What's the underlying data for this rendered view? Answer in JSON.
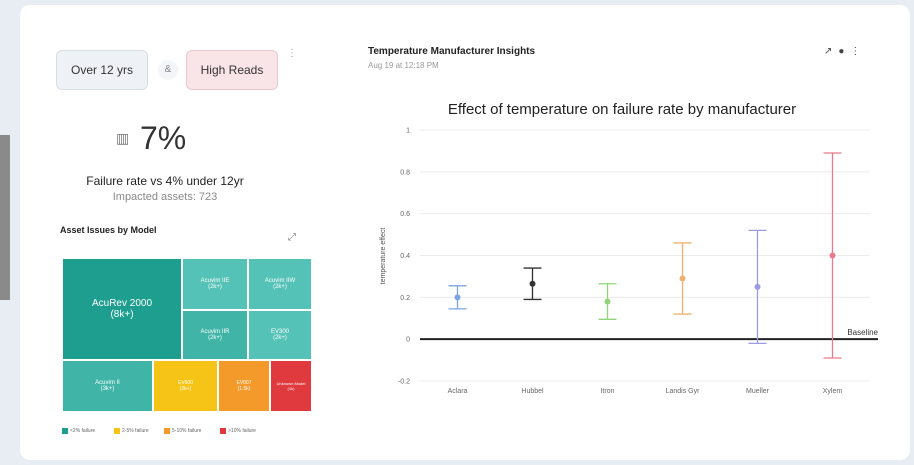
{
  "filters": {
    "left": "Over 12 yrs",
    "join": "&",
    "right": "High Reads"
  },
  "kpi": {
    "value": "7%",
    "caption": "Failure rate vs 4% under 12yr",
    "sub": "Impacted assets: 723"
  },
  "treemap": {
    "title": "Asset Issues by Model",
    "tiles": [
      {
        "name": "AcuRev 2000",
        "label": "(8k+)"
      },
      {
        "name": "Acuvim IIE",
        "label": "(2k+)"
      },
      {
        "name": "Acuvim IIW",
        "label": "(2k+)"
      },
      {
        "name": "Acuvim IIR",
        "label": "(2k+)"
      },
      {
        "name": "EV300",
        "label": "(2k+)"
      },
      {
        "name": "Acuvim II",
        "label": "(3k+)"
      },
      {
        "name": "EV600",
        "label": "(2k+)"
      },
      {
        "name": "EV007",
        "label": "(1.5k)"
      },
      {
        "name": "Unknown Model",
        "label": "(1k)"
      }
    ],
    "legend": [
      "<2% failure",
      "2-5% failure",
      "5-10% failure",
      ">10% failure"
    ]
  },
  "panel": {
    "title": "Temperature Manufacturer Insights",
    "timestamp": "Aug 19 at 12:18 PM"
  },
  "chart_data": {
    "type": "errorbar",
    "title": "Effect of temperature on failure rate by manufacturer",
    "y_label": "temperature effect",
    "categories": [
      "Aclara",
      "Hubbel",
      "Itron",
      "Landis Gyr",
      "Mueller",
      "Xylem"
    ],
    "values": [
      0.2,
      0.265,
      0.18,
      0.29,
      0.25,
      0.4
    ],
    "errors": [
      0.055,
      0.075,
      0.085,
      0.17,
      0.27,
      0.49
    ],
    "colors": [
      "#7aa6e3",
      "#333333",
      "#8fd47a",
      "#f0b070",
      "#9b9be3",
      "#e97a8c"
    ],
    "ylim": [
      -0.2,
      1
    ],
    "yticks": [
      -0.2,
      0,
      0.2,
      0.4,
      0.6,
      0.8,
      1
    ],
    "grid": true,
    "baseline": {
      "value": 0,
      "label": "Baseline"
    }
  }
}
